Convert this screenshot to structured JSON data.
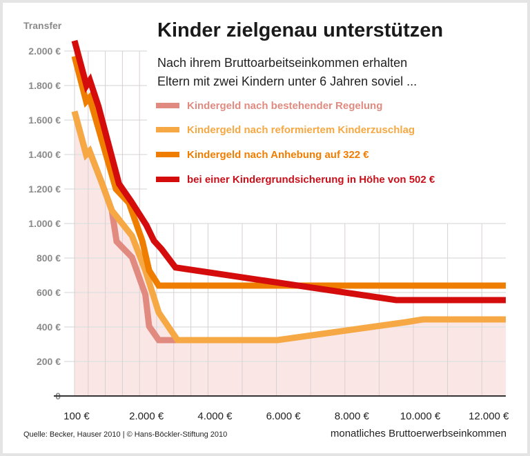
{
  "chart_data": {
    "type": "line",
    "title": "Kinder zielgenau unterstützen",
    "subtitle": [
      "Nach ihrem Bruttoarbeitseinkommen erhalten",
      "Eltern mit zwei Kindern unter 6 Jahren soviel ..."
    ],
    "ylabel": "Transfer",
    "xlabel": "monatliches Bruttoerwerbseinkommen",
    "source": "Quelle: Becker, Hauser 2010 | © Hans-Böckler-Stiftung 2010",
    "ylim": [
      0,
      2000
    ],
    "xlim": [
      100,
      12700
    ],
    "grid": true,
    "legend_position": "top-right",
    "yticks": [
      {
        "v": 0,
        "label": "0"
      },
      {
        "v": 200,
        "label": "200 €"
      },
      {
        "v": 400,
        "label": "400 €"
      },
      {
        "v": 600,
        "label": "600 €"
      },
      {
        "v": 800,
        "label": "800 €"
      },
      {
        "v": 1000,
        "label": "1.000 €"
      },
      {
        "v": 1200,
        "label": "1.200 €"
      },
      {
        "v": 1400,
        "label": "1.400 €"
      },
      {
        "v": 1600,
        "label": "1.600 €"
      },
      {
        "v": 1800,
        "label": "1.800 €"
      },
      {
        "v": 2000,
        "label": "2.000 €"
      }
    ],
    "xticks": [
      {
        "v": 100,
        "label": "100 €"
      },
      {
        "v": 2000,
        "label": "2.000 €"
      },
      {
        "v": 4000,
        "label": "4.000 €"
      },
      {
        "v": 6000,
        "label": "6.000 €"
      },
      {
        "v": 8000,
        "label": "8.000 €"
      },
      {
        "v": 10000,
        "label": "10.000 €"
      },
      {
        "v": 12000,
        "label": "12.000 €"
      }
    ],
    "xgrid": [
      100,
      500,
      1000,
      1500,
      2000,
      2500,
      3000,
      3500,
      4000,
      5000,
      6000,
      7000,
      8000,
      9000,
      10000,
      11000,
      12000
    ],
    "series": [
      {
        "name": "Kindergeld nach bestehender Regelung",
        "color": "#e08a80",
        "points": [
          [
            100,
            1650
          ],
          [
            440,
            1400
          ],
          [
            540,
            1420
          ],
          [
            890,
            1240
          ],
          [
            1190,
            1076
          ],
          [
            1330,
            896
          ],
          [
            1780,
            804
          ],
          [
            2170,
            588
          ],
          [
            2280,
            404
          ],
          [
            2560,
            324
          ],
          [
            3110,
            324
          ]
        ]
      },
      {
        "name": "Kindergeld nach reformiertem Kinderzuschlag",
        "color": "#f5a843",
        "points": [
          [
            100,
            1650
          ],
          [
            440,
            1400
          ],
          [
            540,
            1420
          ],
          [
            890,
            1240
          ],
          [
            1190,
            1076
          ],
          [
            1780,
            928
          ],
          [
            2170,
            728
          ],
          [
            2560,
            484
          ],
          [
            3110,
            324
          ],
          [
            6030,
            324
          ],
          [
            9780,
            428
          ],
          [
            10280,
            444
          ],
          [
            12700,
            444
          ]
        ]
      },
      {
        "name": "Kindergeld nach Anhebung auf 322 €",
        "color": "#ef7d00",
        "points": [
          [
            100,
            1970
          ],
          [
            440,
            1708
          ],
          [
            540,
            1730
          ],
          [
            1310,
            1200
          ],
          [
            1690,
            1120
          ],
          [
            2080,
            900
          ],
          [
            2280,
            728
          ],
          [
            2560,
            640
          ],
          [
            12700,
            640
          ]
        ]
      },
      {
        "name": "bei einer Kindergrundsicherung in Höhe von 502 €",
        "color": "#d50c0c",
        "points": [
          [
            100,
            2060
          ],
          [
            450,
            1800
          ],
          [
            550,
            1830
          ],
          [
            800,
            1680
          ],
          [
            1400,
            1230
          ],
          [
            1750,
            1130
          ],
          [
            2200,
            990
          ],
          [
            2420,
            900
          ],
          [
            2650,
            850
          ],
          [
            3050,
            745
          ],
          [
            9500,
            556
          ],
          [
            12700,
            556
          ]
        ]
      }
    ],
    "fill_color": "#fbe6e6"
  }
}
